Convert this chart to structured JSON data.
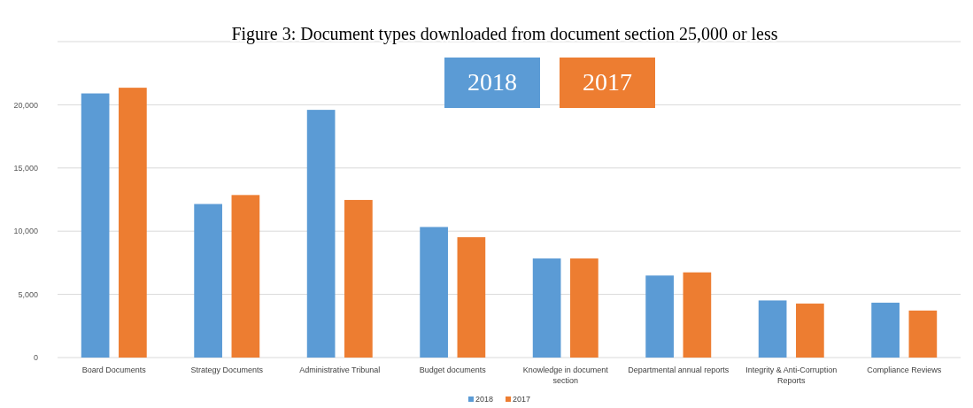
{
  "chart_data": {
    "type": "bar",
    "title": "Figure 3: Document types downloaded from document section 25,000 or less",
    "categories": [
      "Board Documents",
      "Strategy Documents",
      "Administrative Tribunal",
      "Budget documents",
      "Knowledge in document section",
      "Departmental annual reports",
      "Integrity & Anti-Corruption Reports",
      "Compliance Reviews"
    ],
    "series": [
      {
        "name": "2018",
        "color": "#5b9bd5",
        "values": [
          20900,
          12150,
          19600,
          10330,
          7840,
          6490,
          4520,
          4340
        ]
      },
      {
        "name": "2017",
        "color": "#ed7d31",
        "values": [
          21350,
          12860,
          12470,
          9520,
          7840,
          6740,
          4270,
          3720
        ]
      }
    ],
    "ylim": [
      0,
      25000
    ],
    "yticks": [
      0,
      {
        "value": 5000,
        "label": "5,000"
      },
      {
        "value": 10000,
        "label": "10,000"
      },
      {
        "value": 15000,
        "label": "15,000"
      },
      {
        "value": 20000,
        "label": "20,000"
      },
      {
        "value": 25000,
        "label": null
      }
    ],
    "grid": "y",
    "legend": "bottom"
  }
}
